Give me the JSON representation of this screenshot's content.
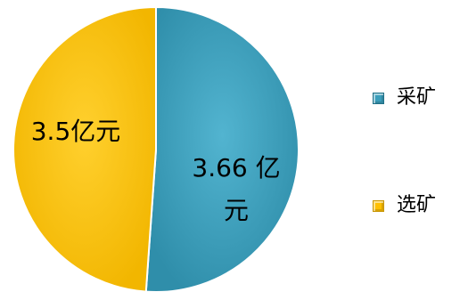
{
  "chart_data": {
    "type": "pie",
    "start_angle_deg": 0,
    "direction": "clockwise",
    "slices": [
      {
        "name": "采矿",
        "value": 3.66,
        "label": [
          "3.66 亿",
          "元"
        ],
        "color": "#3a9ebb"
      },
      {
        "name": "选矿",
        "value": 3.5,
        "label": [
          "3.5亿元"
        ],
        "color": "#ffc000"
      }
    ],
    "legend": {
      "placement": "right"
    }
  }
}
